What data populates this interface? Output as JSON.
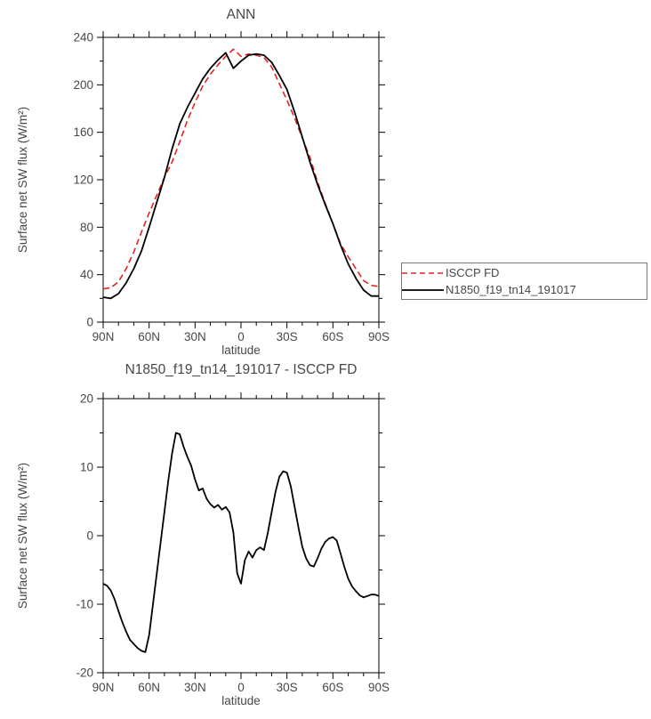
{
  "page": {
    "background": "#ffffff",
    "text_color": "#474747",
    "axis_color": "#000000"
  },
  "chart_data": [
    {
      "type": "line",
      "title": "ANN",
      "xlabel": "latitude",
      "ylabel": "Surface net SW flux (W/m²)",
      "xlim": [
        90,
        -90
      ],
      "ylim": [
        0,
        240
      ],
      "ytick_step": 40,
      "yminor_step": 20,
      "xminor_step": 10,
      "xticks": [
        90,
        60,
        30,
        0,
        -30,
        -60,
        -90
      ],
      "xtick_labels": [
        "90N",
        "60N",
        "30N",
        "0",
        "30S",
        "60S",
        "90S"
      ],
      "grid": false,
      "legend_position": "outside-right",
      "x": [
        90,
        85,
        80,
        75,
        70,
        65,
        60,
        55,
        50,
        45,
        40,
        35,
        30,
        25,
        20,
        15,
        10,
        5,
        0,
        -5,
        -10,
        -15,
        -20,
        -25,
        -30,
        -35,
        -40,
        -45,
        -50,
        -55,
        -60,
        -65,
        -70,
        -75,
        -80,
        -85,
        -90
      ],
      "series": [
        {
          "name": "ISCCP FD",
          "color": "#e22420",
          "dash": true,
          "width": 1.6,
          "values": [
            28,
            29,
            34,
            45,
            59,
            76,
            92,
            107,
            122,
            135,
            152,
            170,
            185,
            199,
            209,
            217,
            224,
            230,
            224,
            226,
            225,
            223,
            215,
            201,
            187,
            172,
            155,
            139,
            118,
            100,
            83,
            66,
            55,
            45,
            35,
            31,
            30
          ]
        },
        {
          "name": "N1850_f19_tn14_191017",
          "color": "#000000",
          "dash": false,
          "width": 1.8,
          "values": [
            21,
            20,
            24,
            33,
            45,
            60,
            80,
            101,
            122,
            146,
            167,
            181,
            193,
            205,
            214,
            221,
            227,
            214,
            220,
            225,
            226,
            225,
            219,
            208,
            196,
            177,
            156,
            135,
            116,
            99,
            83,
            65,
            49,
            37,
            27,
            22,
            22
          ]
        }
      ]
    },
    {
      "type": "line",
      "title": "N1850_f19_tn14_191017 - ISCCP FD",
      "xlabel": "latitude",
      "ylabel": "Surface net SW flux (W/m²)",
      "xlim": [
        90,
        -90
      ],
      "ylim": [
        -20,
        20
      ],
      "ytick_step": 10,
      "yminor_step": 5,
      "xminor_step": 10,
      "xticks": [
        90,
        60,
        30,
        0,
        -30,
        -60,
        -90
      ],
      "xtick_labels": [
        "90N",
        "60N",
        "30N",
        "0",
        "30S",
        "60S",
        "90S"
      ],
      "grid": false,
      "legend_position": "none",
      "x": [
        90,
        87.5,
        85,
        82.5,
        80,
        77.5,
        75,
        72.5,
        70,
        67.5,
        65,
        62.5,
        60,
        57.5,
        55,
        52.5,
        50,
        47.5,
        45,
        42.5,
        40,
        37.5,
        35,
        32.5,
        30,
        27.5,
        25,
        22.5,
        20,
        17.5,
        15,
        12.5,
        10,
        7.5,
        5,
        2.5,
        0,
        -2.5,
        -5,
        -7.5,
        -10,
        -12.5,
        -15,
        -17.5,
        -20,
        -22.5,
        -25,
        -27.5,
        -30,
        -32.5,
        -35,
        -37.5,
        -40,
        -42.5,
        -45,
        -47.5,
        -50,
        -52.5,
        -55,
        -57.5,
        -60,
        -62.5,
        -65,
        -67.5,
        -70,
        -72.5,
        -75,
        -77.5,
        -80,
        -82.5,
        -85,
        -87.5,
        -90
      ],
      "series": [
        {
          "name": "N1850_f19_tn14_191017 - ISCCP FD",
          "color": "#000000",
          "dash": false,
          "width": 1.8,
          "values": [
            -7.0,
            -7.3,
            -8.0,
            -9.3,
            -11.0,
            -12.6,
            -14.0,
            -15.2,
            -15.8,
            -16.4,
            -16.8,
            -17.0,
            -14.5,
            -10.0,
            -5.5,
            -1.0,
            3.5,
            8.0,
            12.0,
            15.0,
            14.8,
            13.0,
            11.5,
            10.2,
            8.2,
            6.6,
            6.9,
            5.4,
            4.6,
            4.1,
            4.5,
            3.8,
            4.2,
            3.4,
            0.5,
            -5.5,
            -7.0,
            -3.6,
            -2.3,
            -3.2,
            -2.1,
            -1.7,
            -2.1,
            0.4,
            3.4,
            6.4,
            8.6,
            9.4,
            9.2,
            7.2,
            4.2,
            1.2,
            -1.6,
            -3.3,
            -4.3,
            -4.5,
            -3.3,
            -1.9,
            -0.9,
            -0.4,
            -0.2,
            -0.7,
            -2.6,
            -4.6,
            -6.3,
            -7.4,
            -8.1,
            -8.7,
            -9.0,
            -8.8,
            -8.6,
            -8.6,
            -8.8
          ]
        }
      ]
    }
  ]
}
